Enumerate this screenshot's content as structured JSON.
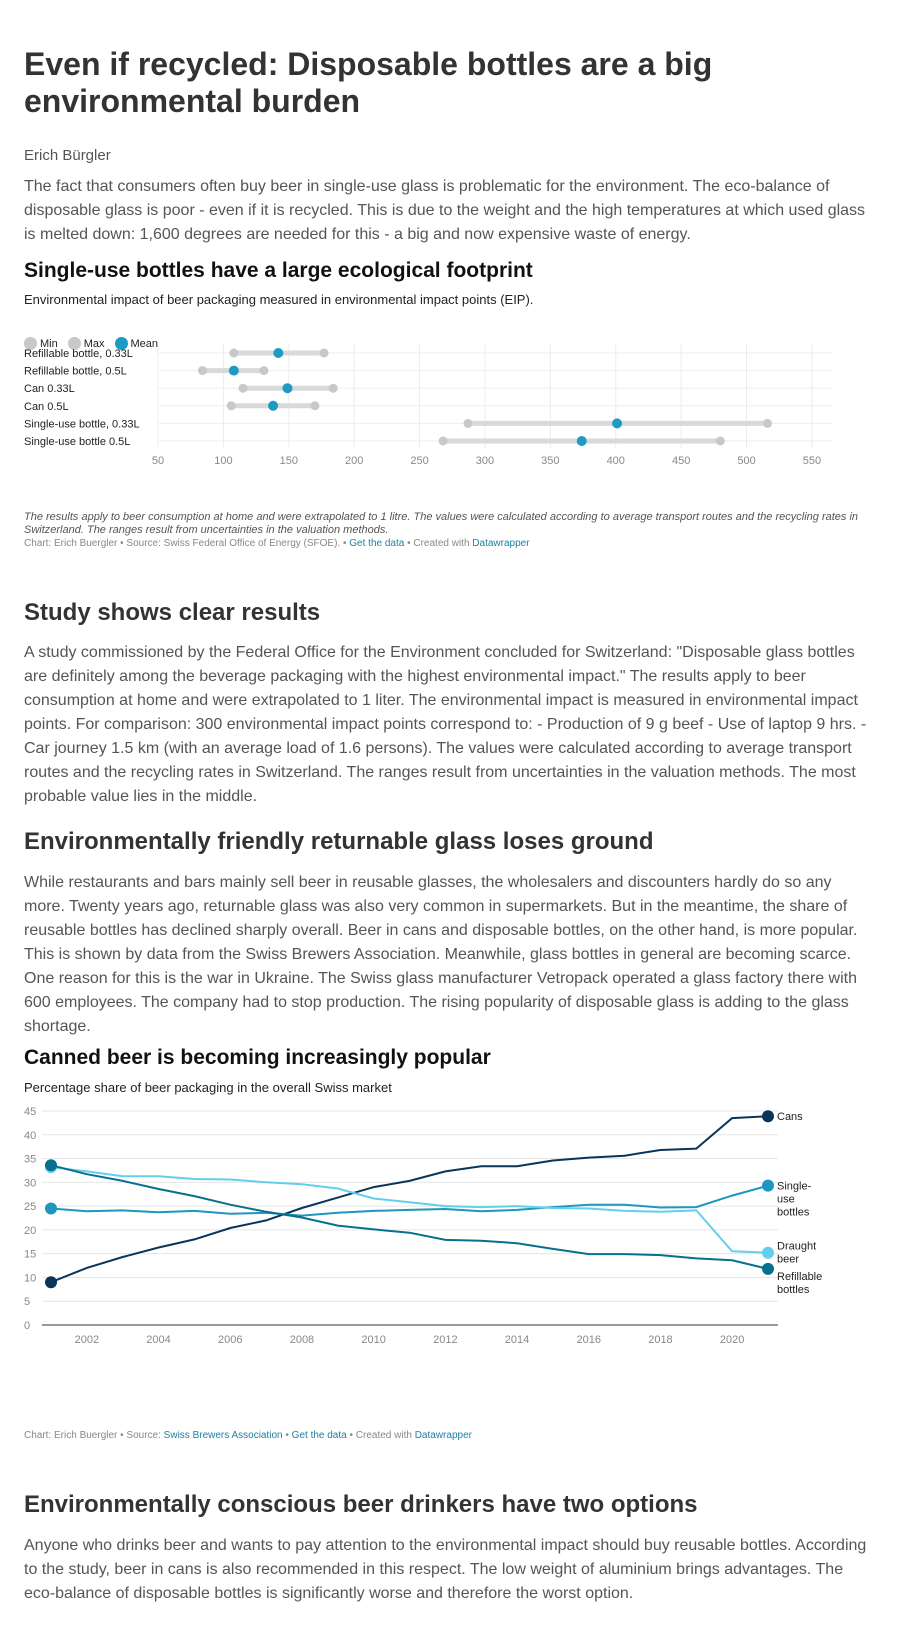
{
  "article": {
    "title": "Even if recycled: Disposable bottles are a big environmental burden",
    "author": "Erich Bürgler",
    "intro": "The fact that consumers often buy beer in single-use glass is problematic for the environment. The eco-balance of disposable glass is poor - even if it is recycled. This is due to the weight and the high temperatures at which used glass is melted down: 1,600 degrees are needed for this - a big and now expensive waste of energy.",
    "section1_heading": "Study shows clear results",
    "section1_text": "A study commissioned by the Federal Office for the Environment concluded for Switzerland: \"Disposable glass bottles are definitely among the beverage packaging with the highest environmental impact.\" The results apply to beer consumption at home and were extrapolated to 1 liter. The environmental impact is measured in environmental impact points. For comparison: 300 environmental impact points correspond to: - Production of 9 g beef - Use of laptop 9 hrs. - Car journey 1.5 km (with an average load of 1.6 persons). The values were calculated according to average transport routes and the recycling rates in Switzerland. The ranges result from uncertainties in the valuation methods. The most probable value lies in the middle.",
    "section2_heading": "Environmentally friendly returnable glass loses ground",
    "section2_text": "While restaurants and bars mainly sell beer in reusable glasses, the wholesalers and discounters hardly do so any more. Twenty years ago, returnable glass was also very common in supermarkets. But in the meantime, the share of reusable bottles has declined sharply overall. Beer in cans and disposable bottles, on the other hand, is more popular. This is shown by data from the Swiss Brewers Association. Meanwhile, glass bottles in general are becoming scarce. One reason for this is the war in Ukraine. The Swiss glass manufacturer Vetropack operated a glass factory there with 600 employees. The company had to stop production. The rising popularity of disposable glass is adding to the glass shortage.",
    "section3_heading": "Environmentally conscious beer drinkers have two options",
    "section3_text": "Anyone who drinks beer and wants to pay attention to the environmental impact should buy reusable bottles. According to the study, beer in cans is also recommended in this respect. The low weight of aluminium brings advantages. The eco-balance of disposable bottles is significantly worse and therefore the worst option."
  },
  "chart1_meta": {
    "notes": "The results apply to beer consumption at home and were extrapolated to 1 litre. The values were calculated according to average transport routes and the recycling rates in Switzerland. The ranges result from uncertainties in the  valuation methods.",
    "credit_prefix": "Chart: Erich Buergler • Source: Swiss Federal Office of Energy (SFOE). • ",
    "get_data": "Get the data",
    "created_with": " • Created with ",
    "datawrapper": "Datawrapper",
    "colors": {
      "range": "#d9d9d9",
      "minmax": "#c8c8c8",
      "mean": "#1e9ac4"
    }
  },
  "chart2_meta": {
    "credit_prefix": "Chart: Erich Buergler • Source: ",
    "source_link": "Swiss Brewers Association",
    "sep": " • ",
    "get_data": "Get the data",
    "created_with": " • Created with ",
    "datawrapper": "Datawrapper"
  },
  "chart_data": [
    {
      "type": "range-dot",
      "title": "Single-use bottles have a large ecological footprint",
      "subtitle": "Environmental impact of beer packaging measured in environmental impact points (EIP).",
      "legend": [
        "Min",
        "Max",
        "Mean"
      ],
      "categories": [
        "Refillable bottle, 0.33L",
        "Refillable bottle, 0.5L",
        "Can 0.33L",
        "Can 0.5L",
        "Single-use bottle, 0.33L",
        "Single-use bottle 0.5L"
      ],
      "min": [
        108,
        84,
        115,
        106,
        287,
        268
      ],
      "max": [
        177,
        131,
        184,
        170,
        516,
        480
      ],
      "mean": [
        142,
        108,
        149,
        138,
        401,
        374
      ],
      "xlim": [
        50,
        560
      ],
      "xticks": [
        50,
        100,
        150,
        200,
        250,
        300,
        350,
        400,
        450,
        500,
        550
      ],
      "grid": true,
      "legend_position": "top-left"
    },
    {
      "type": "line",
      "title": "Canned beer is becoming increasingly popular",
      "subtitle": "Percentage share of beer packaging in the overall Swiss market",
      "x": [
        2001,
        2002,
        2003,
        2004,
        2005,
        2006,
        2007,
        2008,
        2009,
        2010,
        2011,
        2012,
        2013,
        2014,
        2015,
        2016,
        2017,
        2018,
        2019,
        2020,
        2021
      ],
      "xticks": [
        2002,
        2004,
        2006,
        2008,
        2010,
        2012,
        2014,
        2016,
        2018,
        2020
      ],
      "ylim": [
        0,
        45
      ],
      "yticks": [
        0,
        5,
        10,
        15,
        20,
        25,
        30,
        35,
        40,
        45
      ],
      "grid": true,
      "series": [
        {
          "name": "Cans",
          "label_lines": [
            "Cans"
          ],
          "color": "#0a3558",
          "values": [
            9.0,
            12.0,
            14.3,
            16.3,
            18.0,
            20.4,
            22.0,
            24.6,
            26.8,
            29.0,
            30.3,
            32.3,
            33.4,
            33.4,
            34.6,
            35.2,
            35.6,
            36.8,
            37.1,
            43.5,
            43.9
          ]
        },
        {
          "name": "Single-use bottles",
          "label_lines": [
            "Single-",
            "use",
            "bottles"
          ],
          "color": "#1e96bf",
          "values": [
            24.5,
            23.9,
            24.1,
            23.7,
            24.0,
            23.4,
            23.6,
            23.0,
            23.6,
            24.0,
            24.2,
            24.4,
            23.9,
            24.2,
            24.8,
            25.3,
            25.3,
            24.7,
            24.8,
            27.2,
            29.3
          ]
        },
        {
          "name": "Draught beer",
          "label_lines": [
            "Draught",
            "beer"
          ],
          "color": "#63cfec",
          "values": [
            33.2,
            32.3,
            31.3,
            31.3,
            30.7,
            30.6,
            30.0,
            29.6,
            28.7,
            26.6,
            25.8,
            25.0,
            24.8,
            25.0,
            24.6,
            24.5,
            24.0,
            23.8,
            24.1,
            15.5,
            15.2
          ]
        },
        {
          "name": "Refillable bottles",
          "label_lines": [
            "Refillable",
            "bottles"
          ],
          "color": "#07708f",
          "values": [
            33.6,
            31.7,
            30.3,
            28.6,
            27.1,
            25.3,
            23.8,
            22.6,
            20.9,
            20.1,
            19.4,
            17.9,
            17.7,
            17.2,
            16.0,
            14.9,
            14.9,
            14.7,
            14.0,
            13.6,
            11.8
          ]
        }
      ]
    }
  ]
}
